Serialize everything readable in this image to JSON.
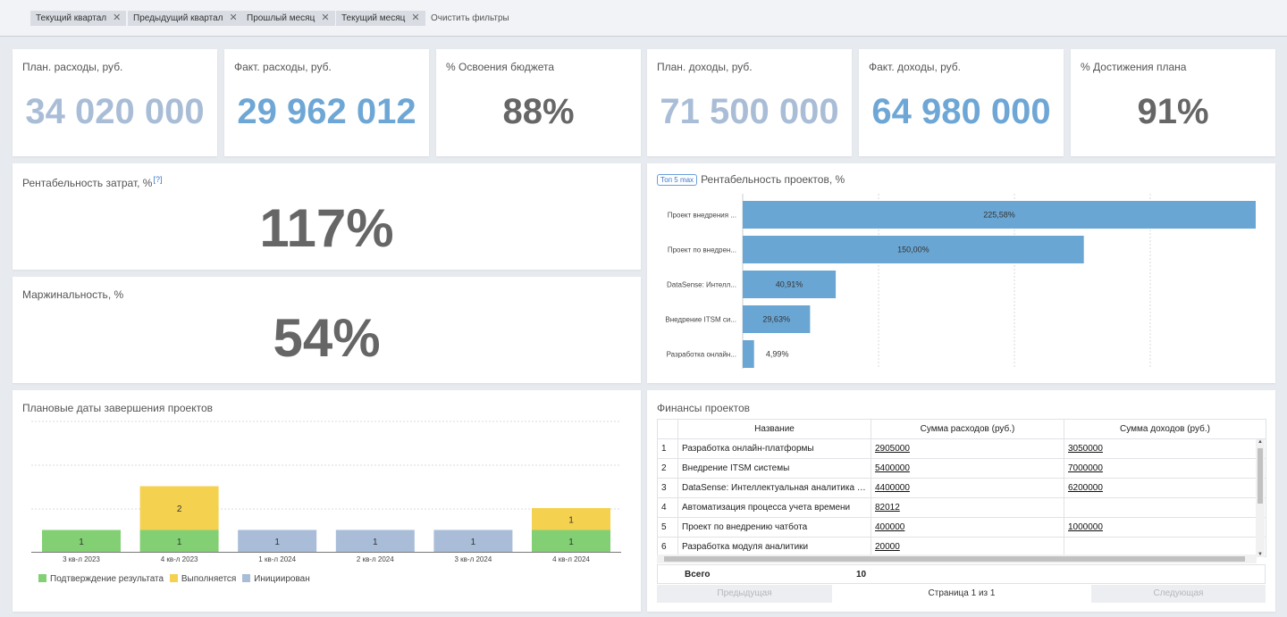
{
  "filters": {
    "chips": [
      "Текущий квартал",
      "Предыдущий квартал",
      "Прошлый месяц",
      "Текущий месяц"
    ],
    "remove_glyph": "✕",
    "clear_label": "Очистить фильтры"
  },
  "kpis": [
    {
      "title": "План. расходы, руб.",
      "value": "34 020 000",
      "color": "#a9bdd6"
    },
    {
      "title": "Факт. расходы, руб.",
      "value": "29 962 012",
      "color": "#6ea7d5"
    },
    {
      "title": "% Освоения бюджета",
      "value": "88%",
      "color": "#666666"
    },
    {
      "title": "План. доходы, руб.",
      "value": "71 500 000",
      "color": "#a9bdd6"
    },
    {
      "title": "Факт. доходы, руб.",
      "value": "64 980 000",
      "color": "#6ea7d5"
    },
    {
      "title": "% Достижения плана",
      "value": "91%",
      "color": "#666666"
    }
  ],
  "profitability": {
    "title": "Рентабельность затрат, %",
    "help": "[?]",
    "value": "117%"
  },
  "margin": {
    "title": "Маржинальность, %",
    "value": "54%"
  },
  "projects_chart": {
    "badge": "Топ 5 max",
    "title": "Рентабельность проектов, %"
  },
  "completion": {
    "title": "Плановые даты завершения проектов"
  },
  "finance": {
    "title": "Финансы проектов",
    "columns": [
      "",
      "Название",
      "Сумма расходов (руб.)",
      "Сумма доходов (руб.)"
    ],
    "rows": [
      {
        "n": "1",
        "name": "Разработка онлайн-платформы",
        "expense": "2905000",
        "income": "3050000"
      },
      {
        "n": "2",
        "name": "Внедрение ITSM системы",
        "expense": "5400000",
        "income": "7000000"
      },
      {
        "n": "3",
        "name": "DataSense: Интеллектуальная аналитика д...",
        "expense": "4400000",
        "income": "6200000"
      },
      {
        "n": "4",
        "name": "Автоматизация процесса учета времени",
        "expense": "82012",
        "income": ""
      },
      {
        "n": "5",
        "name": "Проект по внедрению чатбота",
        "expense": "400000",
        "income": "1000000"
      },
      {
        "n": "6",
        "name": "Разработка модуля аналитики",
        "expense": "20000",
        "income": ""
      }
    ],
    "total_label": "Всего",
    "total_count": "10",
    "prev_label": "Предыдущая",
    "page_info": "Страница 1 из 1",
    "next_label": "Следующая"
  },
  "chart_data": [
    {
      "type": "bar",
      "orientation": "horizontal",
      "title": "Рентабельность проектов, %",
      "categories": [
        "Проект внедрения ...",
        "Проект по внедрен...",
        "DataSense: Интелл...",
        "Внедрение ITSM си...",
        "Разработка онлайн..."
      ],
      "values": [
        225.58,
        150.0,
        40.91,
        29.63,
        4.99
      ],
      "labels": [
        "225,58%",
        "150,00%",
        "40,91%",
        "29,63%",
        "4,99%"
      ],
      "xlim": [
        0,
        225.58
      ],
      "color": "#6aa6d4"
    },
    {
      "type": "bar",
      "stacked": true,
      "title": "Плановые даты завершения проектов",
      "categories": [
        "3 кв-л 2023",
        "4 кв-л 2023",
        "1 кв-л 2024",
        "2 кв-л 2024",
        "3 кв-л 2024",
        "4 кв-л 2024"
      ],
      "series": [
        {
          "name": "Подтверждение результата",
          "color": "#83d074",
          "values": [
            1,
            1,
            0,
            0,
            0,
            1
          ]
        },
        {
          "name": "Выполняется",
          "color": "#f5d150",
          "values": [
            0,
            2,
            0,
            0,
            0,
            1
          ]
        },
        {
          "name": "Инициирован",
          "color": "#a9bdd8",
          "values": [
            0,
            0,
            1,
            1,
            1,
            0
          ]
        }
      ],
      "ylim": [
        0,
        6
      ]
    }
  ]
}
